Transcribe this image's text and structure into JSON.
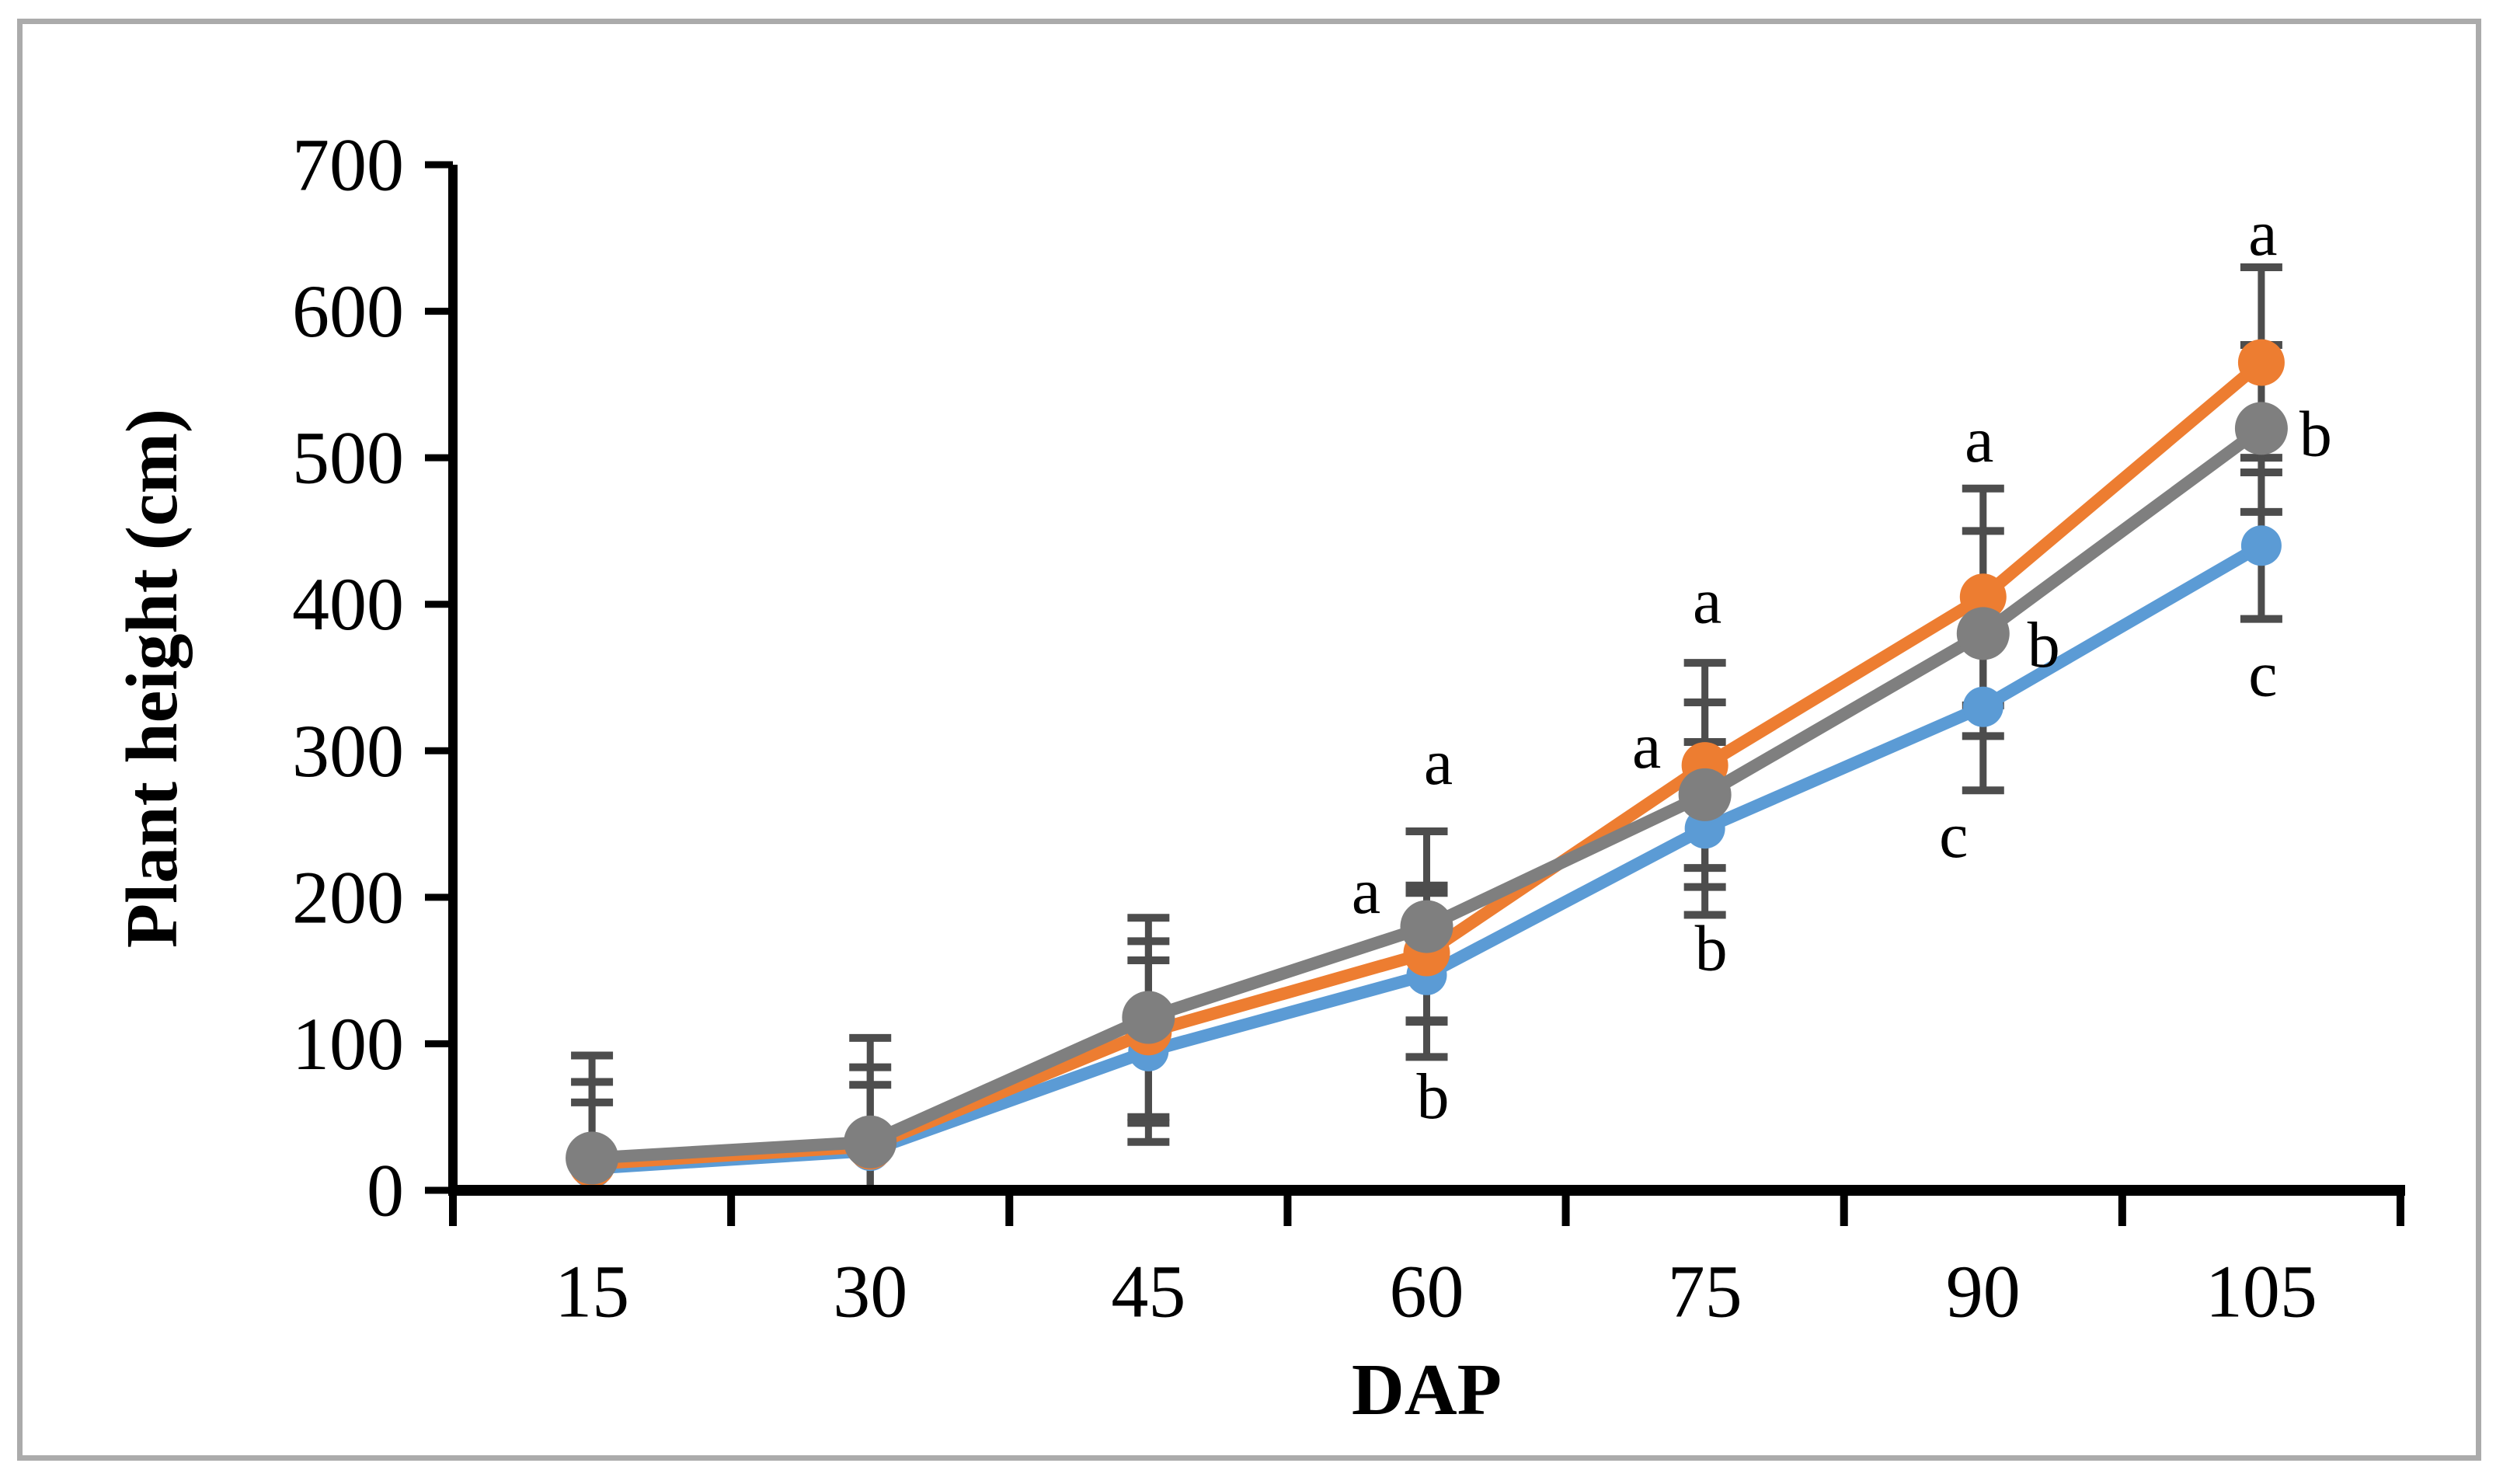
{
  "figure": {
    "xlabel": "DAP",
    "ylabel": "Plant height (cm)"
  },
  "chart_data": {
    "type": "line",
    "title": "",
    "xlabel": "DAP",
    "ylabel": "Plant height (cm)",
    "categories": [
      "15",
      "30",
      "45",
      "60",
      "75",
      "90",
      "105"
    ],
    "ylim": [
      0,
      700
    ],
    "ytick_step": 100,
    "ytick_labels": [
      "0",
      "100",
      "200",
      "300",
      "400",
      "500",
      "600",
      "700"
    ],
    "grid": false,
    "legend": "none",
    "axis_color": "#000000",
    "error_bar_color": "#4d4d4d",
    "series": [
      {
        "name": "blue",
        "color": "#5B9BD5",
        "marker_radius": 26,
        "values": [
          15,
          27,
          95,
          147,
          247,
          330,
          440
        ],
        "errors": [
          45,
          45,
          62,
          56,
          59,
          57,
          50
        ]
      },
      {
        "name": "orange",
        "color": "#ED7D31",
        "marker_radius": 30,
        "values": [
          18,
          30,
          108,
          162,
          290,
          405,
          565
        ],
        "errors": [
          56,
          54,
          62,
          46,
          70,
          74,
          65
        ]
      },
      {
        "name": "gray",
        "color": "#7F7F7F",
        "marker_radius": 34,
        "values": [
          22,
          33,
          118,
          180,
          270,
          380,
          520
        ],
        "errors": [
          70,
          71,
          68,
          65,
          63,
          70,
          57
        ]
      }
    ],
    "annotations": [
      {
        "text": "a",
        "category": "60",
        "dx": 15,
        "level": 292
      },
      {
        "text": "a",
        "category": "60",
        "dx": -78,
        "level": 204
      },
      {
        "text": "b",
        "category": "60",
        "dx": 8,
        "level": 64
      },
      {
        "text": "a",
        "category": "75",
        "dx": 3,
        "level": 402
      },
      {
        "text": "a",
        "category": "75",
        "dx": -75,
        "level": 303
      },
      {
        "text": "b",
        "category": "75",
        "dx": 8,
        "level": 165
      },
      {
        "text": "a",
        "category": "90",
        "dx": -5,
        "level": 512
      },
      {
        "text": "b",
        "category": "90",
        "dx": 78,
        "level": 372
      },
      {
        "text": "c",
        "category": "90",
        "dx": -38,
        "level": 242
      },
      {
        "text": "a",
        "category": "105",
        "dx": 2,
        "level": 653
      },
      {
        "text": "b",
        "category": "105",
        "dx": 70,
        "level": 516
      },
      {
        "text": "c",
        "category": "105",
        "dx": 2,
        "level": 352
      }
    ]
  }
}
